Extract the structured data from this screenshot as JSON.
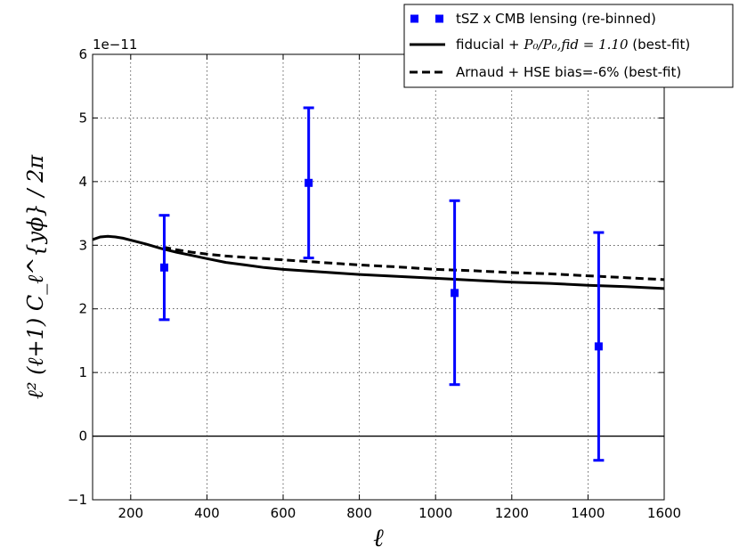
{
  "chart_data": {
    "type": "scatter",
    "title": "",
    "xlabel": "ℓ",
    "ylabel": "ℓ² (ℓ+1) C_ℓ^{yϕ} / 2π",
    "y_offset_text": "1e−11",
    "xlim": [
      100,
      1600
    ],
    "ylim": [
      -1,
      6
    ],
    "y_scale_factor": 1e-11,
    "xticks": [
      200,
      400,
      600,
      800,
      1000,
      1200,
      1400,
      1600
    ],
    "yticks": [
      -1,
      0,
      1,
      2,
      3,
      4,
      5,
      6
    ],
    "xtick_labels": [
      "200",
      "400",
      "600",
      "800",
      "1000",
      "1200",
      "1400",
      "1600"
    ],
    "ytick_labels": [
      "−1",
      "0",
      "1",
      "2",
      "3",
      "4",
      "5",
      "6"
    ],
    "grid": true,
    "legend_position": "top-right",
    "zero_line": true,
    "series": [
      {
        "name": "tSZ x CMB lensing (re-binned)",
        "kind": "errorbar",
        "color": "#0000ff",
        "points": [
          {
            "x": 288,
            "y": 2.65,
            "ylow": 1.83,
            "yhigh": 3.47
          },
          {
            "x": 667,
            "y": 3.98,
            "ylow": 2.8,
            "yhigh": 5.16
          },
          {
            "x": 1050,
            "y": 2.25,
            "ylow": 0.81,
            "yhigh": 3.7
          },
          {
            "x": 1428,
            "y": 1.41,
            "ylow": -0.38,
            "yhigh": 3.2
          }
        ]
      },
      {
        "name": "fiducial + ",
        "name_math": "P₀/P₀,fid = 1.10",
        "name_suffix": " (best-fit)",
        "kind": "line",
        "color": "#000000",
        "dash": "solid",
        "x": [
          100,
          120,
          140,
          160,
          180,
          200,
          240,
          280,
          320,
          360,
          400,
          450,
          500,
          550,
          600,
          700,
          800,
          900,
          1000,
          1100,
          1200,
          1300,
          1400,
          1500,
          1600
        ],
        "y": [
          3.09,
          3.13,
          3.14,
          3.13,
          3.11,
          3.08,
          3.02,
          2.95,
          2.89,
          2.84,
          2.79,
          2.73,
          2.69,
          2.65,
          2.62,
          2.58,
          2.54,
          2.51,
          2.48,
          2.45,
          2.42,
          2.4,
          2.37,
          2.35,
          2.32
        ]
      },
      {
        "name": "Arnaud + HSE bias=-6% (best-fit)",
        "kind": "line",
        "color": "#000000",
        "dash": "dashed",
        "x": [
          285,
          320,
          360,
          400,
          450,
          500,
          550,
          600,
          700,
          800,
          900,
          1000,
          1100,
          1200,
          1300,
          1400,
          1500,
          1600
        ],
        "y": [
          2.97,
          2.93,
          2.89,
          2.86,
          2.83,
          2.81,
          2.79,
          2.77,
          2.73,
          2.69,
          2.66,
          2.62,
          2.6,
          2.57,
          2.55,
          2.52,
          2.49,
          2.46
        ]
      }
    ]
  }
}
